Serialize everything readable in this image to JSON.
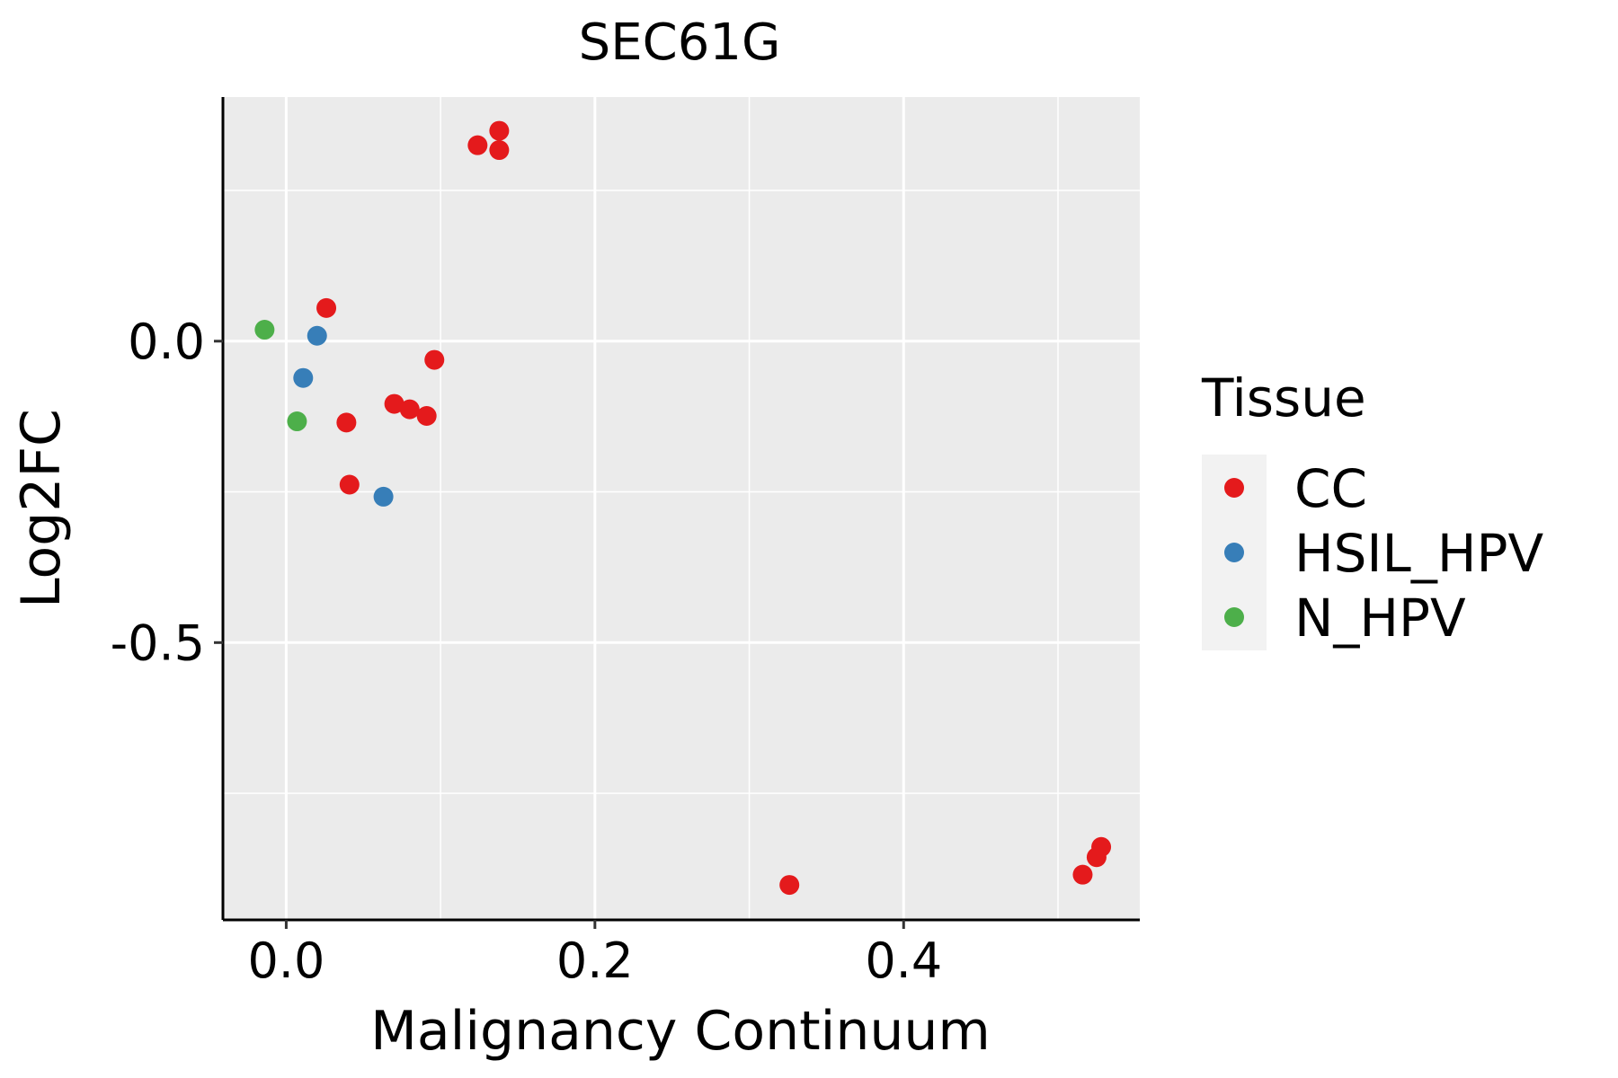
{
  "chart_data": {
    "type": "scatter",
    "title": "SEC61G",
    "xlabel": "Malignancy Continuum",
    "ylabel": "Log2FC",
    "xlim": [
      -0.041,
      0.553
    ],
    "ylim": [
      -0.96,
      0.405
    ],
    "x_ticks": [
      0.0,
      0.2,
      0.4
    ],
    "x_tick_labels": [
      "0.0",
      "0.2",
      "0.4"
    ],
    "x_minor": [
      0.1,
      0.3,
      0.5
    ],
    "y_ticks": [
      0.0,
      -0.5
    ],
    "y_tick_labels": [
      "0.0",
      "-0.5"
    ],
    "y_minor": [
      0.25,
      -0.25,
      -0.75
    ],
    "grid": true,
    "legend": {
      "title": "Tissue",
      "placement": "right",
      "entries": [
        "CC",
        "HSIL_HPV",
        "N_HPV"
      ]
    },
    "series": [
      {
        "name": "CC",
        "color": "#E41A1C",
        "x": [
          0.124,
          0.138,
          0.138,
          0.026,
          0.096,
          0.07,
          0.08,
          0.091,
          0.039,
          0.041,
          0.326,
          0.516,
          0.525,
          0.528
        ],
        "y": [
          0.325,
          0.349,
          0.317,
          0.055,
          -0.031,
          -0.104,
          -0.113,
          -0.124,
          -0.135,
          -0.238,
          -0.902,
          -0.885,
          -0.856,
          -0.839
        ]
      },
      {
        "name": "HSIL_HPV",
        "color": "#377EB8",
        "x": [
          0.02,
          0.011,
          0.063
        ],
        "y": [
          0.009,
          -0.061,
          -0.258
        ]
      },
      {
        "name": "N_HPV",
        "color": "#4DAF4A",
        "x": [
          -0.014,
          0.007
        ],
        "y": [
          0.019,
          -0.133
        ]
      }
    ]
  }
}
